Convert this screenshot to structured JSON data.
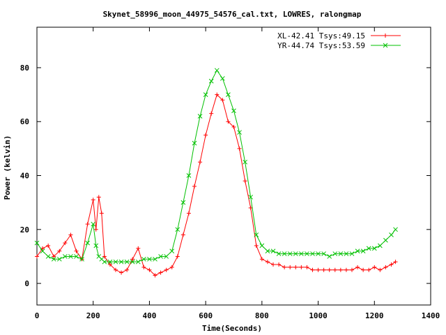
{
  "chart_data": {
    "type": "scatter",
    "title": "Skynet_58996_moon_44975_54576_cal.txt, LOWRES, ralongmap",
    "xlabel": "Time(Seconds)",
    "ylabel": "Power (kelvin)",
    "xlim": [
      0,
      1400
    ],
    "ylim": [
      -8,
      95
    ],
    "x_ticks": [
      0,
      200,
      400,
      600,
      800,
      1000,
      1200,
      1400
    ],
    "y_ticks": [
      0,
      20,
      40,
      60,
      80
    ],
    "x_tick_labels": [
      "0",
      "200",
      "400",
      "600",
      "800",
      "1000",
      "1200",
      "1400"
    ],
    "y_tick_labels": [
      "0",
      "20",
      "40",
      "60",
      "80"
    ],
    "grid": false,
    "legend_position": "top-right",
    "series": [
      {
        "name": "XL-42.41 Tsys:49.15",
        "color": "#ff0000",
        "marker": "plus",
        "x": [
          0,
          20,
          40,
          60,
          80,
          100,
          120,
          140,
          160,
          180,
          200,
          210,
          220,
          230,
          240,
          260,
          280,
          300,
          320,
          340,
          360,
          380,
          400,
          420,
          440,
          460,
          480,
          500,
          520,
          540,
          560,
          580,
          600,
          620,
          640,
          660,
          680,
          700,
          720,
          740,
          760,
          780,
          800,
          820,
          840,
          860,
          880,
          900,
          920,
          940,
          960,
          980,
          1000,
          1020,
          1040,
          1060,
          1080,
          1100,
          1120,
          1140,
          1160,
          1180,
          1200,
          1220,
          1240,
          1260,
          1275
        ],
        "y": [
          10,
          13,
          14,
          10,
          12,
          15,
          18,
          12,
          9,
          22,
          31,
          20,
          32,
          26,
          10,
          7,
          5,
          4,
          5,
          9,
          13,
          6,
          5,
          3,
          4,
          5,
          6,
          10,
          18,
          26,
          36,
          45,
          55,
          63,
          70,
          68,
          60,
          58,
          50,
          38,
          28,
          14,
          9,
          8,
          7,
          7,
          6,
          6,
          6,
          6,
          6,
          5,
          5,
          5,
          5,
          5,
          5,
          5,
          5,
          6,
          5,
          5,
          6,
          5,
          6,
          7,
          8
        ]
      },
      {
        "name": "YR-44.74 Tsys:53.59",
        "color": "#00c000",
        "marker": "x",
        "x": [
          0,
          20,
          40,
          60,
          80,
          100,
          120,
          140,
          160,
          180,
          200,
          210,
          220,
          230,
          240,
          260,
          280,
          300,
          320,
          340,
          360,
          380,
          400,
          420,
          440,
          460,
          480,
          500,
          520,
          540,
          560,
          580,
          600,
          620,
          640,
          660,
          680,
          700,
          720,
          740,
          760,
          780,
          800,
          820,
          840,
          860,
          880,
          900,
          920,
          940,
          960,
          980,
          1000,
          1020,
          1040,
          1060,
          1080,
          1100,
          1120,
          1140,
          1160,
          1180,
          1200,
          1220,
          1240,
          1260,
          1275
        ],
        "y": [
          15,
          12,
          10,
          9,
          9,
          10,
          10,
          10,
          9,
          15,
          22,
          14,
          10,
          9,
          8,
          8,
          8,
          8,
          8,
          8,
          8,
          9,
          9,
          9,
          10,
          10,
          12,
          20,
          30,
          40,
          52,
          62,
          70,
          75,
          79,
          76,
          70,
          64,
          56,
          45,
          32,
          18,
          14,
          12,
          12,
          11,
          11,
          11,
          11,
          11,
          11,
          11,
          11,
          11,
          10,
          11,
          11,
          11,
          11,
          12,
          12,
          13,
          13,
          14,
          16,
          18,
          20
        ]
      }
    ]
  }
}
